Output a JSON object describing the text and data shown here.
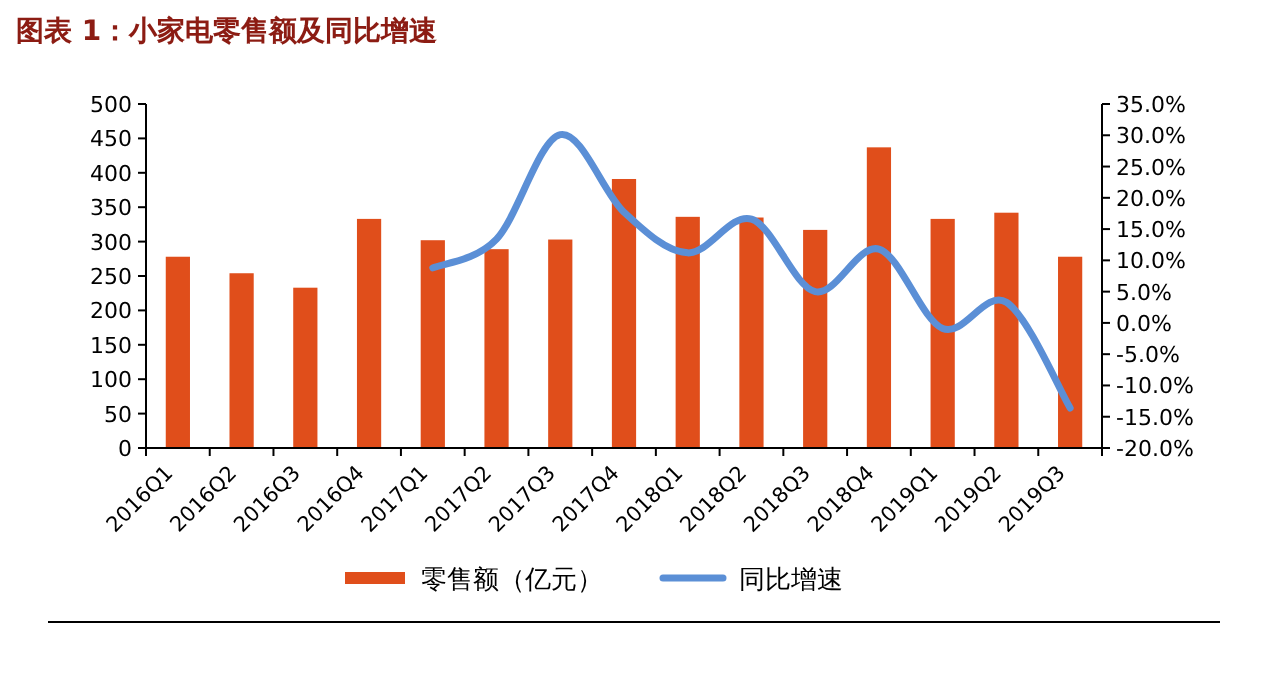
{
  "chart_data": {
    "type": "bar",
    "title": "图表 1：小家电零售额及同比增速",
    "categories": [
      "2016Q1",
      "2016Q2",
      "2016Q3",
      "2016Q4",
      "2017Q1",
      "2017Q2",
      "2017Q3",
      "2017Q4",
      "2018Q1",
      "2018Q2",
      "2018Q3",
      "2018Q4",
      "2019Q1",
      "2019Q2",
      "2019Q3"
    ],
    "series": [
      {
        "name": "零售额（亿元）",
        "color": "#e04e1b",
        "values": [
          278,
          254,
          233,
          333,
          302,
          289,
          303,
          391,
          336,
          335,
          317,
          437,
          333,
          342,
          278
        ]
      },
      {
        "name": "同比增速",
        "type": "line",
        "axis": "y2",
        "color": "#5b8fd6",
        "values": [
          null,
          null,
          null,
          null,
          8.8,
          13.4,
          30.1,
          17.7,
          11.2,
          16.6,
          5.0,
          11.8,
          -0.9,
          3.3,
          -13.6
        ]
      }
    ],
    "ylim": [
      0,
      500
    ],
    "yticks": [
      0,
      50,
      100,
      150,
      200,
      250,
      300,
      350,
      400,
      450,
      500
    ],
    "y2lim": [
      -20,
      35
    ],
    "y2ticks": [
      {
        "value": 35,
        "label": "35.0%"
      },
      {
        "value": 30,
        "label": "30.0%"
      },
      {
        "value": 25,
        "label": "25.0%"
      },
      {
        "value": 20,
        "label": "20.0%"
      },
      {
        "value": 15,
        "label": "15.0%"
      },
      {
        "value": 10,
        "label": "10.0%"
      },
      {
        "value": 5,
        "label": "5.0%"
      },
      {
        "value": 0,
        "label": "0.0%"
      },
      {
        "value": -5,
        "label": "-5.0%"
      },
      {
        "value": -10,
        "label": "-10.0%"
      },
      {
        "value": -15,
        "label": "-15.0%"
      },
      {
        "value": -20,
        "label": "-20.0%"
      }
    ],
    "grid": false,
    "legend": "bottom"
  }
}
